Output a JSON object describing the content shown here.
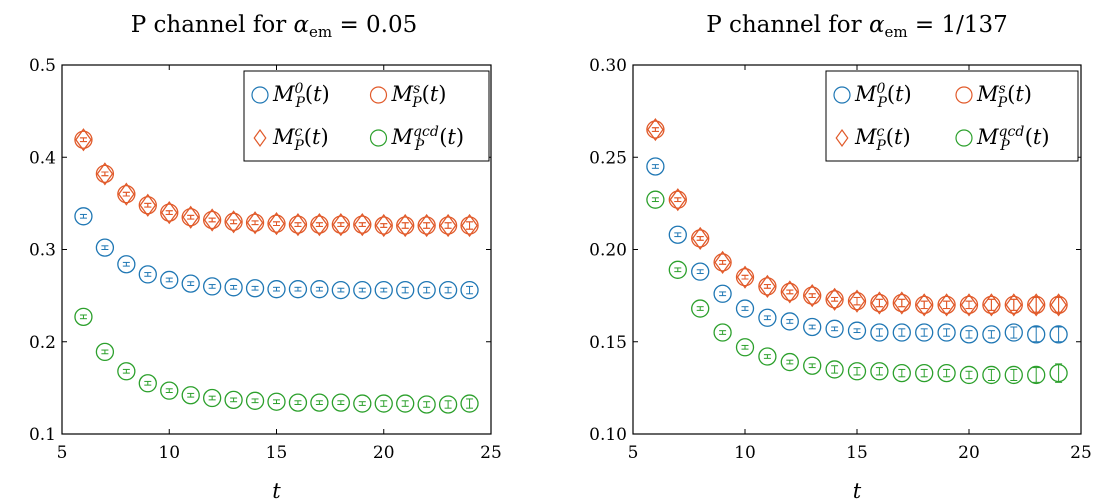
{
  "chart_data": [
    {
      "type": "scatter",
      "title": "P channel for α_em = 0.05",
      "title_main": "P channel for ",
      "title_math": "α",
      "title_sub": "em",
      "title_tail": " = 0.05",
      "xlabel": "t",
      "ylabel": "",
      "xlim": [
        5,
        25
      ],
      "ylim": [
        0.1,
        0.5
      ],
      "xticks": [
        "5",
        "10",
        "15",
        "20",
        "25"
      ],
      "yticks": [
        "0.1",
        "0.2",
        "0.3",
        "0.4",
        "0.5"
      ],
      "legend_position": "top-right",
      "x": [
        6,
        7,
        8,
        9,
        10,
        11,
        12,
        13,
        14,
        15,
        16,
        17,
        18,
        19,
        20,
        21,
        22,
        23,
        24
      ],
      "series": [
        {
          "name": "M_P^0(t)",
          "base": "M",
          "sub": "P",
          "sup": "0",
          "color": "#1f77b4",
          "marker": "circle",
          "values": [
            0.336,
            0.302,
            0.284,
            0.273,
            0.267,
            0.263,
            0.26,
            0.259,
            0.258,
            0.257,
            0.257,
            0.257,
            0.256,
            0.256,
            0.256,
            0.256,
            0.256,
            0.256,
            0.256
          ],
          "errors": [
            0.002,
            0.002,
            0.002,
            0.002,
            0.002,
            0.002,
            0.002,
            0.002,
            0.002,
            0.002,
            0.002,
            0.002,
            0.002,
            0.002,
            0.002,
            0.003,
            0.003,
            0.003,
            0.004
          ]
        },
        {
          "name": "M_P^s(t)",
          "base": "M",
          "sub": "P",
          "sup": "s",
          "color": "#e15a2a",
          "marker": "circle",
          "values": [
            0.419,
            0.382,
            0.36,
            0.348,
            0.34,
            0.335,
            0.332,
            0.33,
            0.329,
            0.328,
            0.327,
            0.327,
            0.327,
            0.327,
            0.326,
            0.326,
            0.326,
            0.326,
            0.326
          ],
          "errors": [
            0.002,
            0.002,
            0.002,
            0.002,
            0.002,
            0.002,
            0.002,
            0.002,
            0.002,
            0.002,
            0.002,
            0.002,
            0.002,
            0.002,
            0.002,
            0.003,
            0.003,
            0.003,
            0.004
          ]
        },
        {
          "name": "M_P^c(t)",
          "base": "M",
          "sub": "P",
          "sup": "c",
          "color": "#e15a2a",
          "marker": "diamond",
          "values": [
            0.419,
            0.382,
            0.36,
            0.348,
            0.34,
            0.335,
            0.332,
            0.33,
            0.329,
            0.328,
            0.327,
            0.327,
            0.327,
            0.327,
            0.326,
            0.326,
            0.326,
            0.326,
            0.326
          ],
          "errors": [
            0.002,
            0.002,
            0.002,
            0.002,
            0.002,
            0.002,
            0.002,
            0.002,
            0.002,
            0.002,
            0.002,
            0.002,
            0.002,
            0.002,
            0.002,
            0.003,
            0.003,
            0.003,
            0.004
          ]
        },
        {
          "name": "M_P^qcd(t)",
          "base": "M",
          "sub": "P",
          "sup": "qcd",
          "color": "#2ca02c",
          "marker": "circle",
          "values": [
            0.227,
            0.189,
            0.168,
            0.155,
            0.147,
            0.142,
            0.139,
            0.137,
            0.136,
            0.135,
            0.134,
            0.134,
            0.134,
            0.133,
            0.133,
            0.133,
            0.132,
            0.132,
            0.133
          ],
          "errors": [
            0.002,
            0.002,
            0.002,
            0.002,
            0.002,
            0.002,
            0.002,
            0.002,
            0.002,
            0.002,
            0.002,
            0.002,
            0.002,
            0.002,
            0.003,
            0.003,
            0.003,
            0.004,
            0.005
          ]
        }
      ]
    },
    {
      "type": "scatter",
      "title": "P channel for α_em = 1/137",
      "title_main": "P channel for ",
      "title_math": "α",
      "title_sub": "em",
      "title_tail": " = 1/137",
      "xlabel": "t",
      "ylabel": "",
      "xlim": [
        5,
        25
      ],
      "ylim": [
        0.1,
        0.3
      ],
      "xticks": [
        "5",
        "10",
        "15",
        "20",
        "25"
      ],
      "yticks": [
        "0.10",
        "0.15",
        "0.20",
        "0.25",
        "0.30"
      ],
      "legend_position": "top-right",
      "x": [
        6,
        7,
        8,
        9,
        10,
        11,
        12,
        13,
        14,
        15,
        16,
        17,
        18,
        19,
        20,
        21,
        22,
        23,
        24
      ],
      "series": [
        {
          "name": "M_P^0(t)",
          "base": "M",
          "sub": "P",
          "sup": "0",
          "color": "#1f77b4",
          "marker": "circle",
          "values": [
            0.245,
            0.208,
            0.188,
            0.176,
            0.168,
            0.163,
            0.161,
            0.158,
            0.157,
            0.156,
            0.155,
            0.155,
            0.155,
            0.155,
            0.154,
            0.154,
            0.155,
            0.154,
            0.154
          ],
          "errors": [
            0.001,
            0.001,
            0.001,
            0.001,
            0.001,
            0.001,
            0.001,
            0.001,
            0.001,
            0.001,
            0.002,
            0.002,
            0.002,
            0.002,
            0.002,
            0.002,
            0.003,
            0.004,
            0.004
          ]
        },
        {
          "name": "M_P^s(t)",
          "base": "M",
          "sub": "P",
          "sup": "s",
          "color": "#e15a2a",
          "marker": "circle",
          "values": [
            0.265,
            0.227,
            0.206,
            0.193,
            0.185,
            0.18,
            0.177,
            0.175,
            0.173,
            0.172,
            0.171,
            0.171,
            0.17,
            0.17,
            0.17,
            0.17,
            0.17,
            0.17,
            0.17
          ],
          "errors": [
            0.001,
            0.001,
            0.001,
            0.001,
            0.001,
            0.001,
            0.001,
            0.001,
            0.001,
            0.002,
            0.002,
            0.002,
            0.002,
            0.002,
            0.002,
            0.003,
            0.003,
            0.004,
            0.004
          ]
        },
        {
          "name": "M_P^c(t)",
          "base": "M",
          "sub": "P",
          "sup": "c",
          "color": "#e15a2a",
          "marker": "diamond",
          "values": [
            0.265,
            0.227,
            0.206,
            0.193,
            0.185,
            0.18,
            0.177,
            0.175,
            0.173,
            0.172,
            0.171,
            0.171,
            0.17,
            0.17,
            0.17,
            0.17,
            0.17,
            0.17,
            0.17
          ],
          "errors": [
            0.001,
            0.001,
            0.001,
            0.001,
            0.001,
            0.001,
            0.001,
            0.001,
            0.001,
            0.002,
            0.002,
            0.002,
            0.002,
            0.002,
            0.002,
            0.003,
            0.003,
            0.004,
            0.004
          ]
        },
        {
          "name": "M_P^qcd(t)",
          "base": "M",
          "sub": "P",
          "sup": "qcd",
          "color": "#2ca02c",
          "marker": "circle",
          "values": [
            0.227,
            0.189,
            0.168,
            0.155,
            0.147,
            0.142,
            0.139,
            0.137,
            0.135,
            0.134,
            0.134,
            0.133,
            0.133,
            0.133,
            0.132,
            0.132,
            0.132,
            0.132,
            0.133
          ],
          "errors": [
            0.001,
            0.001,
            0.001,
            0.001,
            0.001,
            0.001,
            0.001,
            0.001,
            0.002,
            0.002,
            0.002,
            0.002,
            0.002,
            0.002,
            0.002,
            0.003,
            0.003,
            0.004,
            0.005
          ]
        }
      ]
    }
  ]
}
